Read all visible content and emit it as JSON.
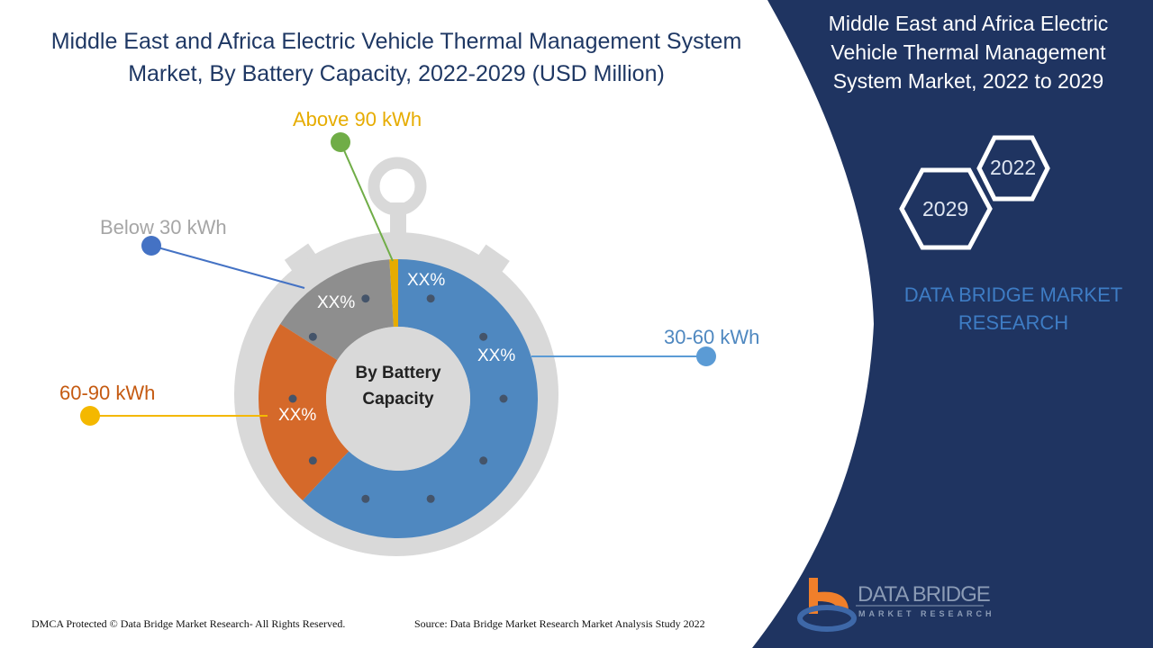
{
  "title": "Middle East and Africa Electric Vehicle Thermal Management System Market, By Battery Capacity, 2022-2029 (USD Million)",
  "side_panel": {
    "title": "Middle East and Africa Electric Vehicle Thermal Management System Market, 2022 to 2029",
    "year_start": "2022",
    "year_end": "2029",
    "brand": "DATA BRIDGE MARKET RESEARCH",
    "logo_text": "DATA BRIDGE",
    "logo_subtext": "MARKET RESEARCH",
    "background": "#1f3461"
  },
  "chart_data": {
    "type": "pie",
    "style": "donut",
    "center_label": "By Battery Capacity",
    "segments": [
      {
        "name": "30-60 kWh",
        "label": "XX%",
        "share": 62,
        "color": "#4f88c0",
        "legend_dot": "#5b9bd5"
      },
      {
        "name": "60-90 kWh",
        "label": "XX%",
        "share": 22,
        "color": "#d5692a",
        "legend_dot": "#f4b800"
      },
      {
        "name": "Below 30 kWh",
        "label": "XX%",
        "share": 15,
        "color": "#8e8e8e",
        "legend_dot": "#4472c4"
      },
      {
        "name": "Above 90 kWh",
        "label": "XX%",
        "share": 1,
        "color": "#e6ac00",
        "legend_dot": "#70ad47"
      }
    ],
    "label_colors": {
      "30-60 kWh": "#4f88c0",
      "60-90 kWh": "#c55a11",
      "Below 30 kWh": "#a6a6a6",
      "Above 90 kWh": "#e6ac00"
    }
  },
  "footer": {
    "copyright": "DMCA Protected © Data Bridge Market Research- All Rights Reserved.",
    "source": "Source: Data Bridge Market Research Market Analysis Study 2022"
  }
}
